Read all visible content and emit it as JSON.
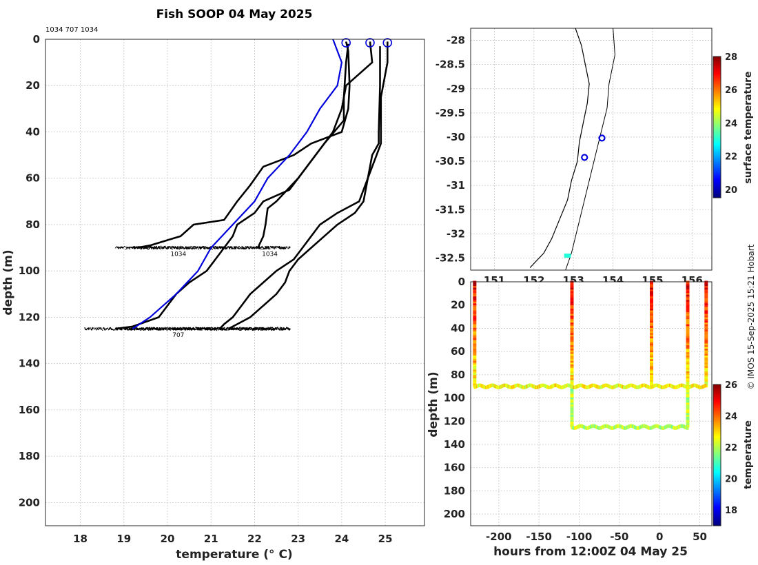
{
  "title": "Fish SOOP 04 May 2025",
  "credit": "© IMOS 15-Sep-2025 15:21 Hobart",
  "chart_data": [
    {
      "type": "line",
      "id": "profiles",
      "header_ids": "1034 707 1034",
      "xlabel": "temperature (° C)",
      "ylabel": "depth (m)",
      "xlim": [
        17.2,
        25.9
      ],
      "ylim": [
        210,
        0
      ],
      "y_inverted": true,
      "xticks": [
        18,
        19,
        20,
        21,
        22,
        23,
        24,
        25
      ],
      "yticks": [
        0,
        20,
        40,
        60,
        80,
        100,
        120,
        140,
        160,
        180,
        200
      ],
      "grid": true,
      "bottom_labels": [
        {
          "text": "1034",
          "x": 20.25,
          "y": 92
        },
        {
          "text": "1034",
          "x": 22.35,
          "y": 92
        },
        {
          "text": "707",
          "x": 20.25,
          "y": 127
        }
      ],
      "series": [
        {
          "color": "#000000",
          "bottom": 90,
          "noise_range": [
            18.8,
            22.8
          ],
          "points": [
            [
              24.1,
              1
            ],
            [
              24.15,
              5
            ],
            [
              24.18,
              20
            ],
            [
              24.15,
              30
            ],
            [
              24.0,
              40
            ],
            [
              23.3,
              45
            ],
            [
              22.9,
              50
            ],
            [
              22.2,
              55
            ],
            [
              21.9,
              63
            ],
            [
              21.6,
              70
            ],
            [
              21.3,
              78
            ],
            [
              20.6,
              80
            ],
            [
              20.3,
              85
            ],
            [
              19.6,
              89
            ],
            [
              19.3,
              90
            ]
          ]
        },
        {
          "color": "#000000",
          "bottom": 90,
          "noise_range": [
            19.2,
            22.7
          ],
          "points": [
            [
              24.15,
              2
            ],
            [
              24.1,
              10
            ],
            [
              24.05,
              25
            ],
            [
              24.05,
              35
            ],
            [
              23.6,
              45
            ],
            [
              23.2,
              55
            ],
            [
              23.0,
              60
            ],
            [
              22.5,
              70
            ],
            [
              22.3,
              73
            ],
            [
              22.25,
              80
            ],
            [
              22.2,
              85
            ],
            [
              22.1,
              89
            ],
            [
              22.1,
              90
            ]
          ]
        },
        {
          "color": "#000000",
          "bottom": 125,
          "noise_range": [
            18.1,
            22.8
          ],
          "points": [
            [
              24.65,
              1
            ],
            [
              24.7,
              10
            ],
            [
              24.1,
              20
            ],
            [
              24.0,
              30
            ],
            [
              23.8,
              40
            ],
            [
              23.4,
              50
            ],
            [
              23.0,
              60
            ],
            [
              22.8,
              65
            ],
            [
              22.2,
              70
            ],
            [
              22.0,
              75
            ],
            [
              21.6,
              80
            ],
            [
              21.5,
              85
            ],
            [
              21.3,
              90
            ],
            [
              21.1,
              95
            ],
            [
              20.9,
              100
            ],
            [
              20.5,
              105
            ],
            [
              20.2,
              110
            ],
            [
              20.0,
              115
            ],
            [
              19.8,
              120
            ],
            [
              19.2,
              124
            ],
            [
              18.8,
              125
            ]
          ]
        },
        {
          "color": "#000000",
          "bottom": 125,
          "noise_range": [
            19.4,
            22.8
          ],
          "points": [
            [
              25.05,
              1
            ],
            [
              25.05,
              10
            ],
            [
              24.9,
              25
            ],
            [
              24.9,
              45
            ],
            [
              24.8,
              50
            ],
            [
              24.6,
              60
            ],
            [
              24.4,
              70
            ],
            [
              23.9,
              75
            ],
            [
              23.5,
              80
            ],
            [
              23.3,
              85
            ],
            [
              23.1,
              90
            ],
            [
              22.9,
              95
            ],
            [
              22.5,
              100
            ],
            [
              22.2,
              105
            ],
            [
              21.9,
              110
            ],
            [
              21.7,
              115
            ],
            [
              21.5,
              120
            ],
            [
              21.3,
              123
            ],
            [
              21.2,
              125
            ]
          ]
        },
        {
          "color": "#000000",
          "bottom": 125,
          "noise_range": [
            19.0,
            22.5
          ],
          "points": [
            [
              24.88,
              3
            ],
            [
              24.88,
              20
            ],
            [
              24.85,
              40
            ],
            [
              24.85,
              45
            ],
            [
              24.7,
              50
            ],
            [
              24.6,
              60
            ],
            [
              24.5,
              70
            ],
            [
              24.3,
              75
            ],
            [
              23.9,
              80
            ],
            [
              23.6,
              85
            ],
            [
              23.3,
              90
            ],
            [
              23.0,
              95
            ],
            [
              22.8,
              100
            ],
            [
              22.7,
              105
            ],
            [
              22.5,
              110
            ],
            [
              22.2,
              115
            ],
            [
              21.9,
              120
            ],
            [
              21.6,
              123
            ],
            [
              21.4,
              125
            ]
          ]
        },
        {
          "color": "#0000dd",
          "name": "",
          "points": [
            [
              23.8,
              0
            ],
            [
              24.0,
              10
            ],
            [
              23.9,
              20
            ],
            [
              23.5,
              30
            ],
            [
              23.2,
              40
            ],
            [
              22.8,
              50
            ],
            [
              22.3,
              60
            ],
            [
              22.0,
              70
            ],
            [
              21.5,
              80
            ],
            [
              21.0,
              90
            ],
            [
              20.7,
              100
            ],
            [
              20.2,
              110
            ],
            [
              19.6,
              120
            ],
            [
              19.2,
              125
            ]
          ]
        }
      ],
      "surface_markers": [
        24.1,
        24.65,
        25.05
      ]
    },
    {
      "type": "scatter",
      "id": "map",
      "xlim": [
        150.4,
        156.5
      ],
      "ylim": [
        -32.75,
        -27.75
      ],
      "yticks": [
        -28,
        -28.5,
        -29,
        -29.5,
        -30,
        -30.5,
        -31,
        -31.5,
        -32,
        -32.5
      ],
      "xticks": [
        151,
        152,
        153,
        154,
        155,
        156
      ],
      "grid": true,
      "stations": [
        {
          "lon": 153.72,
          "lat": -30.02,
          "color": "#0000dd"
        },
        {
          "lon": 153.28,
          "lat": -30.42,
          "color": "#0000dd"
        }
      ],
      "surface_marker": {
        "lon": 152.85,
        "lat": -32.45,
        "value": 23.0
      },
      "coast": [
        [
          153.05,
          -27.75
        ],
        [
          153.2,
          -28.1
        ],
        [
          153.3,
          -28.5
        ],
        [
          153.4,
          -28.9
        ],
        [
          153.35,
          -29.3
        ],
        [
          153.25,
          -29.7
        ],
        [
          153.15,
          -30.1
        ],
        [
          153.1,
          -30.5
        ],
        [
          152.95,
          -30.9
        ],
        [
          152.85,
          -31.3
        ],
        [
          152.65,
          -31.7
        ],
        [
          152.45,
          -32.1
        ],
        [
          152.25,
          -32.4
        ],
        [
          151.9,
          -32.7
        ]
      ],
      "shelf": [
        [
          154.0,
          -27.75
        ],
        [
          154.05,
          -28.3
        ],
        [
          153.9,
          -28.9
        ],
        [
          153.85,
          -29.4
        ],
        [
          153.7,
          -29.9
        ],
        [
          153.55,
          -30.4
        ],
        [
          153.4,
          -30.9
        ],
        [
          153.25,
          -31.4
        ],
        [
          153.1,
          -31.9
        ],
        [
          152.95,
          -32.4
        ],
        [
          152.8,
          -32.75
        ]
      ],
      "colorbar": {
        "label": "surface temperature",
        "min": 19.5,
        "max": 28,
        "ticks": [
          20,
          22,
          24,
          26,
          28
        ]
      }
    },
    {
      "type": "scatter",
      "id": "time_depth",
      "xlabel": "hours from 12:00Z 04 May 25",
      "ylabel": "depth (m)",
      "xlim": [
        -235,
        65
      ],
      "ylim": [
        210,
        0
      ],
      "xticks": [
        -200,
        -150,
        -100,
        -50,
        0,
        50
      ],
      "yticks": [
        0,
        20,
        40,
        60,
        80,
        100,
        120,
        140,
        160,
        180,
        200
      ],
      "grid": true,
      "casts": [
        {
          "hour": -230,
          "bottom": 90
        },
        {
          "hour": -109,
          "bottom": 125
        },
        {
          "hour": -10,
          "bottom": 90
        },
        {
          "hour": 35,
          "bottom": 125
        },
        {
          "hour": 58,
          "bottom": 90
        }
      ],
      "tracks": [
        {
          "from": -230,
          "to": 58,
          "depth": 90
        },
        {
          "from": -109,
          "to": 35,
          "depth": 125
        }
      ],
      "colorbar": {
        "label": "temperature",
        "min": 17,
        "max": 26,
        "ticks": [
          18,
          20,
          22,
          24,
          26
        ]
      }
    }
  ]
}
